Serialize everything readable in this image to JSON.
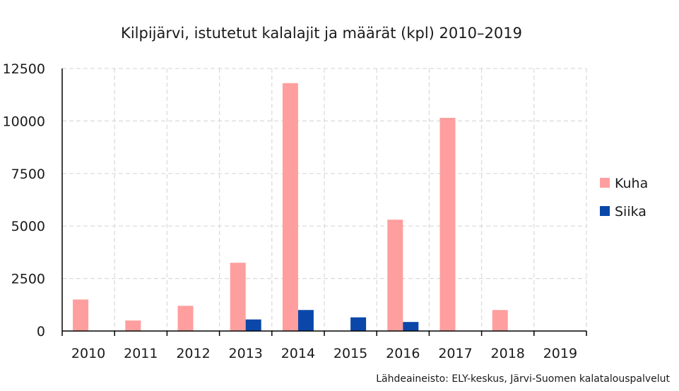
{
  "chart_data": {
    "type": "bar",
    "title": "Kilpijärvi, istutetut kalalajit ja määrät (kpl) 2010–2019",
    "xlabel": "",
    "ylabel": "",
    "categories": [
      "2010",
      "2011",
      "2012",
      "2013",
      "2014",
      "2015",
      "2016",
      "2017",
      "2018",
      "2019"
    ],
    "series": [
      {
        "name": "Kuha",
        "color": "#ff9e9e",
        "values": [
          1500,
          500,
          1200,
          3250,
          11800,
          0,
          5300,
          10150,
          1000,
          0
        ]
      },
      {
        "name": "Siika",
        "color": "#0a47a9",
        "values": [
          0,
          0,
          0,
          550,
          1000,
          650,
          430,
          0,
          0,
          0
        ]
      }
    ],
    "ylim": [
      0,
      12500
    ],
    "yticks": [
      "0",
      "2500",
      "5000",
      "7500",
      "10000",
      "12500"
    ],
    "grid": true,
    "legend_position": "right",
    "source": "Lähdeaineisto: ELY-keskus, Järvi-Suomen kalatalouspalvelut"
  }
}
